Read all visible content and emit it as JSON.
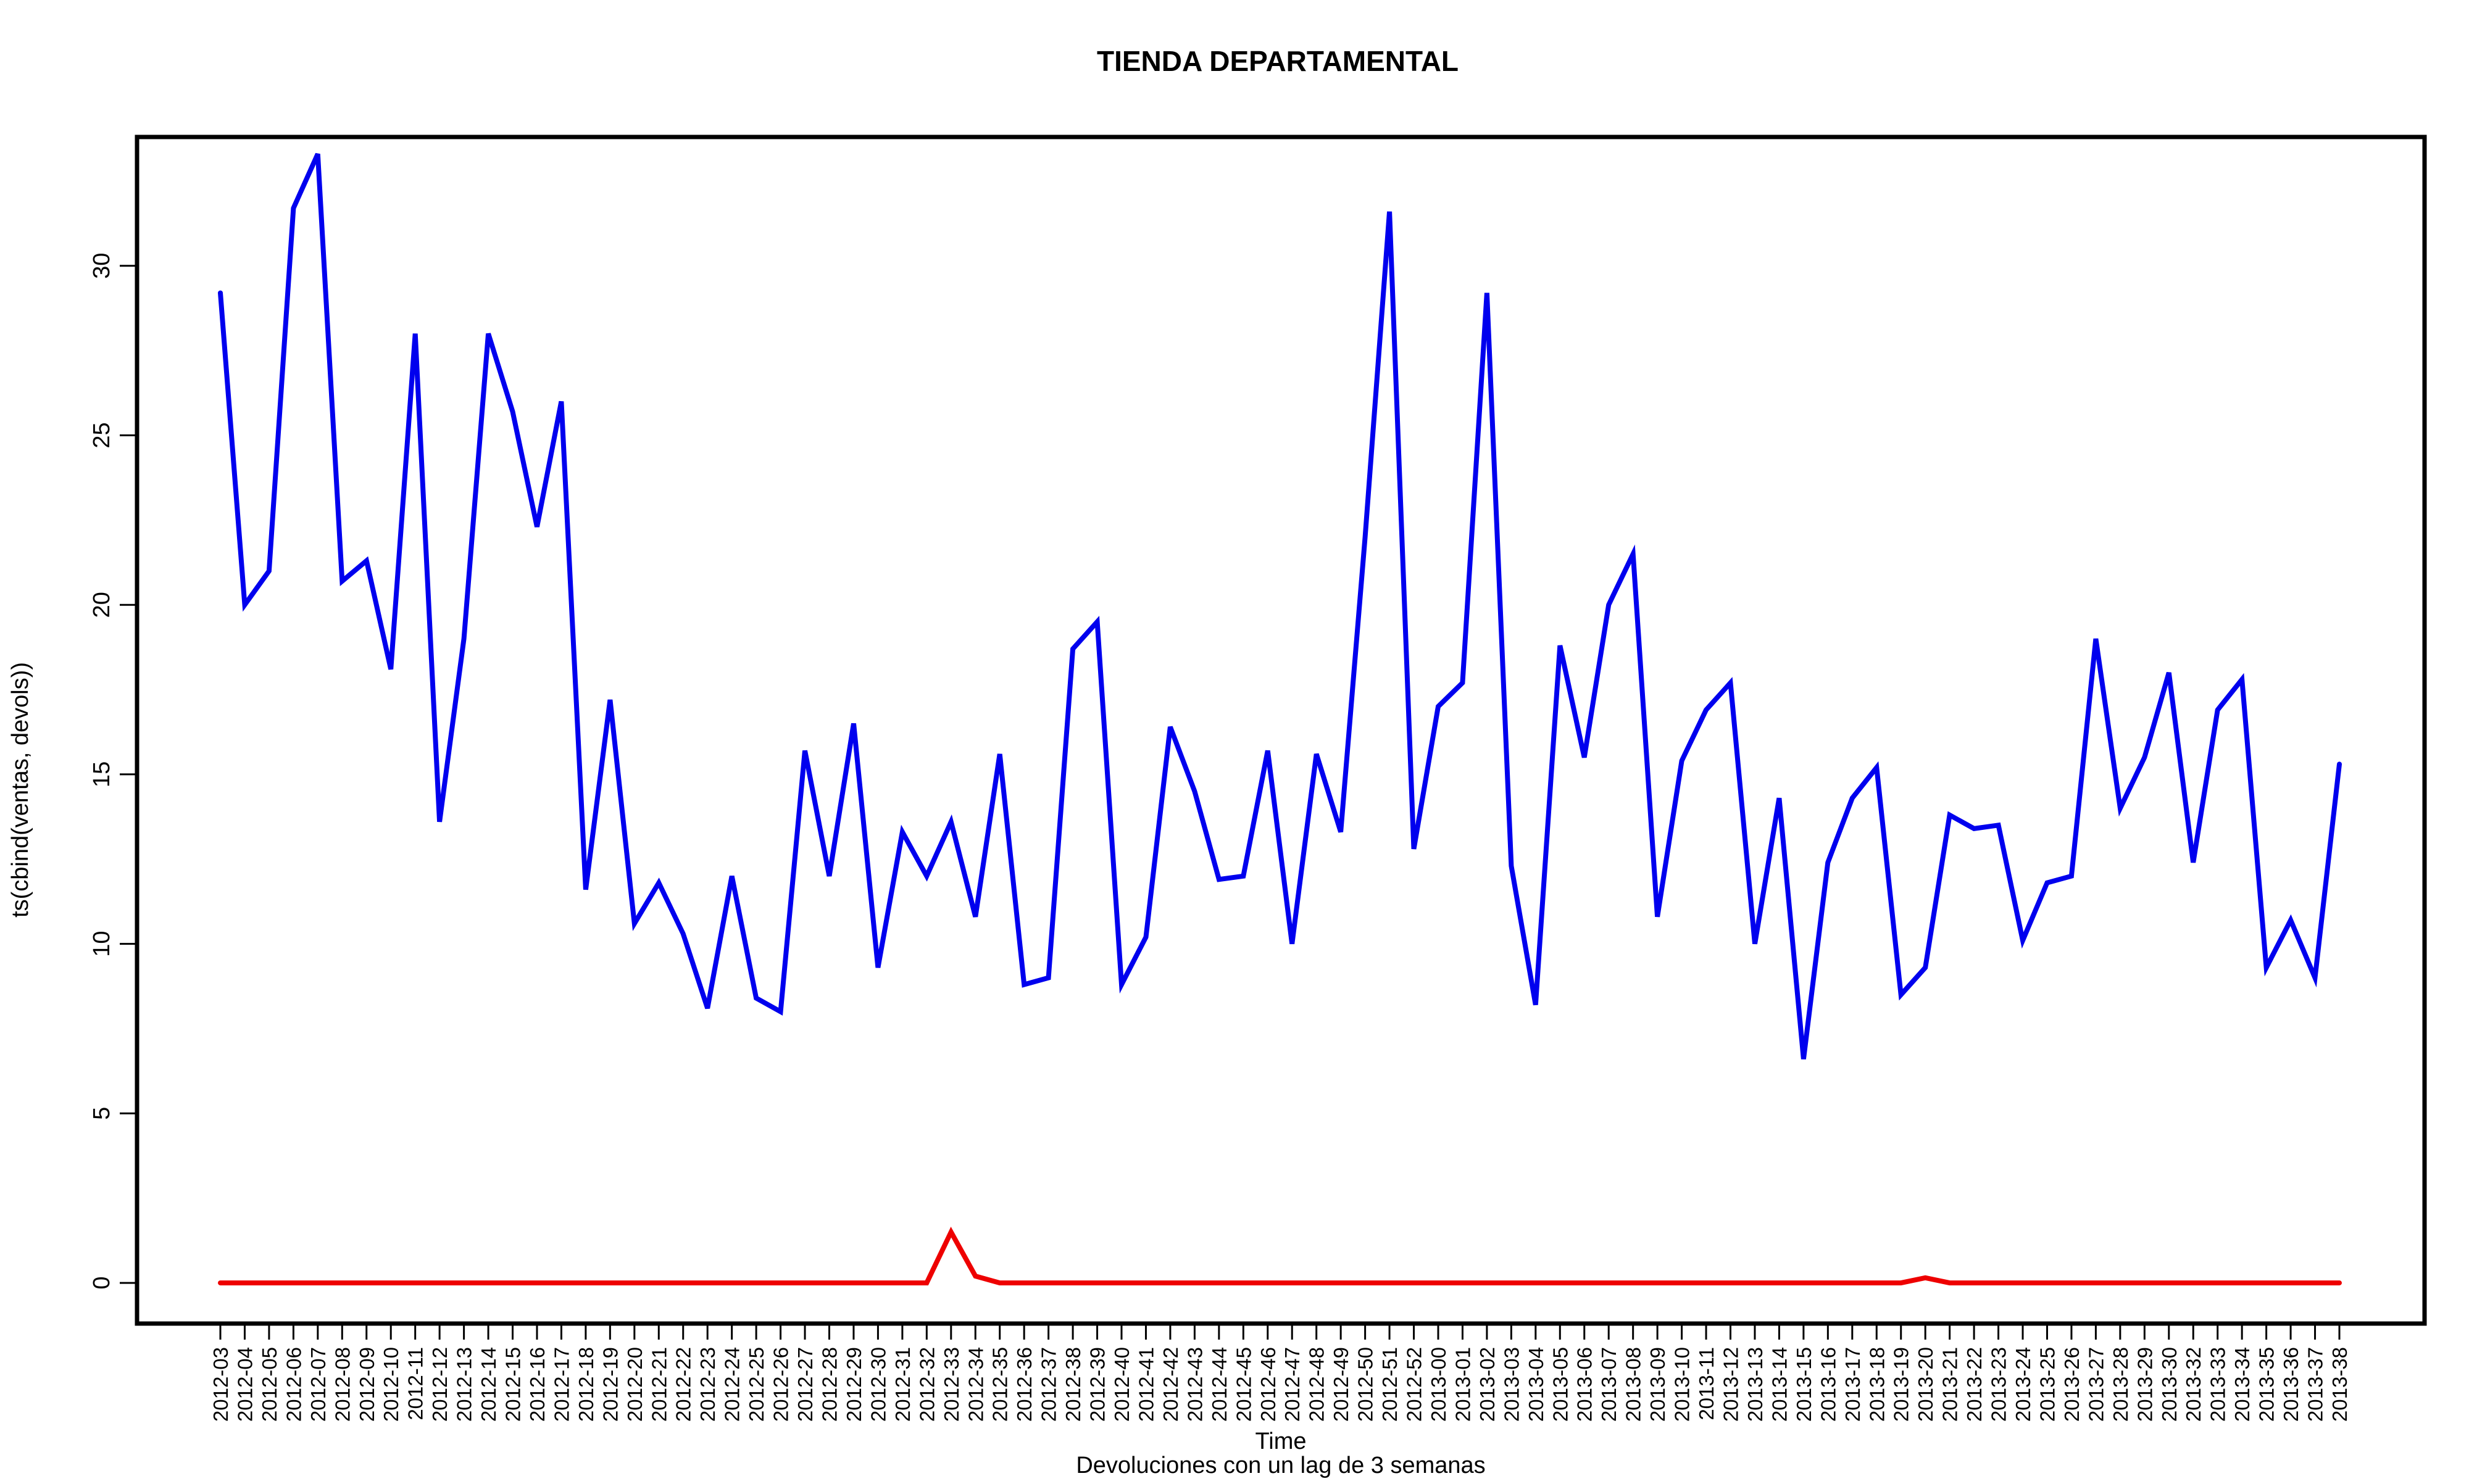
{
  "chart_data": {
    "type": "line",
    "title": "TIENDA DEPARTAMENTAL",
    "xlabel": "Time",
    "ylabel": "ts(cbind(ventas, devols))",
    "caption": "Devoluciones con un lag de 3 semanas",
    "ylim": [
      -1.2,
      33.8
    ],
    "yticks": [
      0,
      5,
      10,
      15,
      20,
      25,
      30
    ],
    "grid": false,
    "categories": [
      "2012-03",
      "2012-04",
      "2012-05",
      "2012-06",
      "2012-07",
      "2012-08",
      "2012-09",
      "2012-10",
      "2012-11",
      "2012-12",
      "2012-13",
      "2012-14",
      "2012-15",
      "2012-16",
      "2012-17",
      "2012-18",
      "2012-19",
      "2012-20",
      "2012-21",
      "2012-22",
      "2012-23",
      "2012-24",
      "2012-25",
      "2012-26",
      "2012-27",
      "2012-28",
      "2012-29",
      "2012-30",
      "2012-31",
      "2012-32",
      "2012-33",
      "2012-34",
      "2012-35",
      "2012-36",
      "2012-37",
      "2012-38",
      "2012-39",
      "2012-40",
      "2012-41",
      "2012-42",
      "2012-43",
      "2012-44",
      "2012-45",
      "2012-46",
      "2012-47",
      "2012-48",
      "2012-49",
      "2012-50",
      "2012-51",
      "2012-52",
      "2013-00",
      "2013-01",
      "2013-02",
      "2013-03",
      "2013-04",
      "2013-05",
      "2013-06",
      "2013-07",
      "2013-08",
      "2013-09",
      "2013-10",
      "2013-11",
      "2013-12",
      "2013-13",
      "2013-14",
      "2013-15",
      "2013-16",
      "2013-17",
      "2013-18",
      "2013-19",
      "2013-20",
      "2013-21",
      "2013-22",
      "2013-23",
      "2013-24",
      "2013-25",
      "2013-26",
      "2013-27",
      "2013-28",
      "2013-29",
      "2013-30",
      "2013-32",
      "2013-33",
      "2013-34",
      "2013-35",
      "2013-36",
      "2013-37",
      "2013-38"
    ],
    "series": [
      {
        "color": "#0000ee",
        "values": [
          29.2,
          20.0,
          21.0,
          31.7,
          33.3,
          20.7,
          21.3,
          18.1,
          28.0,
          13.6,
          19.0,
          28.0,
          25.7,
          22.3,
          26.0,
          11.6,
          17.2,
          10.6,
          11.8,
          10.3,
          8.1,
          12.0,
          8.4,
          8.0,
          15.7,
          12.0,
          16.5,
          9.3,
          13.3,
          12.0,
          13.6,
          10.8,
          15.6,
          8.8,
          9.0,
          18.7,
          19.5,
          8.8,
          10.2,
          16.4,
          14.5,
          11.9,
          12.0,
          15.7,
          10.0,
          15.6,
          13.3,
          22.0,
          31.6,
          12.8,
          17.0,
          17.7,
          29.2,
          12.3,
          8.2,
          18.8,
          15.5,
          20.0,
          21.5,
          10.8,
          15.4,
          16.9,
          17.7,
          10.0,
          14.3,
          6.6,
          12.4,
          14.3,
          15.2,
          8.5,
          9.3,
          13.8,
          13.4,
          13.5,
          10.1,
          11.8,
          12.0,
          19.0,
          14.0,
          15.5,
          18.0,
          12.4,
          16.9,
          17.8,
          9.3,
          10.7,
          9.0,
          15.3
        ]
      },
      {
        "color": "#ee0000",
        "values": [
          0,
          0,
          0,
          0,
          0,
          0,
          0,
          0,
          0,
          0,
          0,
          0,
          0,
          0,
          0,
          0,
          0,
          0,
          0,
          0,
          0,
          0,
          0,
          0,
          0,
          0,
          0,
          0,
          0,
          0,
          1.5,
          0.2,
          0,
          0,
          0,
          0,
          0,
          0,
          0,
          0,
          0,
          0,
          0,
          0,
          0,
          0,
          0,
          0,
          0,
          0,
          0,
          0,
          0,
          0,
          0,
          0,
          0,
          0,
          0,
          0,
          0,
          0,
          0,
          0,
          0,
          0,
          0,
          0,
          0,
          0,
          0.15,
          0,
          0,
          0,
          0,
          0,
          0,
          0,
          0,
          0,
          0,
          0,
          0,
          0,
          0,
          0,
          0,
          0
        ]
      }
    ]
  }
}
